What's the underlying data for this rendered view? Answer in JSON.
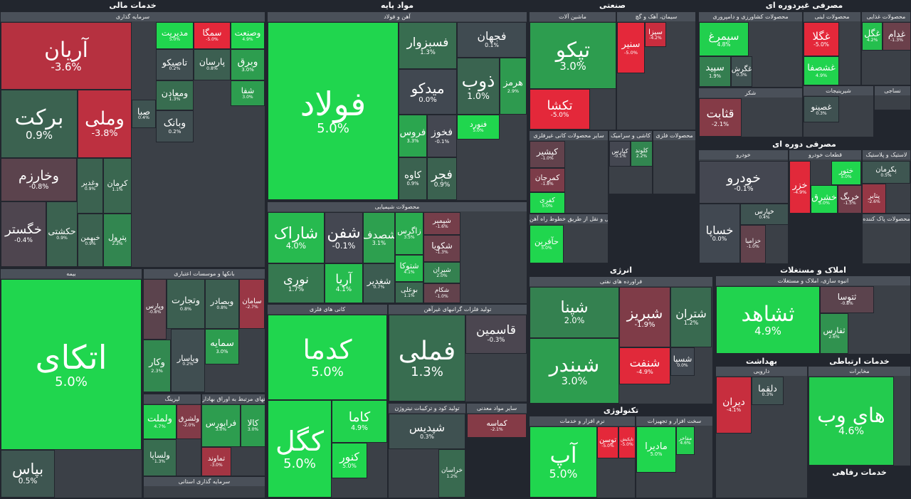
{
  "sectors": [
    {
      "title": "خدمات مالی",
      "groups": [
        {
          "title": "سرمایه گذاری",
          "tiles": [
            {
              "name": "آریان",
              "change": "-3.6%"
            },
            {
              "name": "برکت",
              "change": "0.9%"
            },
            {
              "name": "وملی",
              "change": "-3.8%"
            },
            {
              "name": "وخارزم",
              "change": "-0.8%"
            },
            {
              "name": "خگستر",
              "change": "-0.4%"
            },
            {
              "name": "حکشتی",
              "change": "0.9%"
            },
            {
              "name": "وغدیر",
              "change": "0.9%"
            },
            {
              "name": "کرمان",
              "change": "1.1%"
            },
            {
              "name": "خبهمن",
              "change": "0.9%"
            },
            {
              "name": "پترول",
              "change": "2.2%"
            },
            {
              "name": "مدیریت",
              "change": "5.0%"
            },
            {
              "name": "سمگا",
              "change": "-5.0%"
            },
            {
              "name": "وصنعت",
              "change": "4.9%"
            },
            {
              "name": "تاصیکو",
              "change": "0.2%"
            },
            {
              "name": "پارسان",
              "change": "0.8%"
            },
            {
              "name": "وبرق",
              "change": "3.0%"
            },
            {
              "name": "ومعادن",
              "change": "1.3%"
            },
            {
              "name": "وبانک",
              "change": "0.2%"
            },
            {
              "name": "صبا",
              "change": "0.4%"
            },
            {
              "name": "شفا",
              "change": "3.0%"
            }
          ]
        },
        {
          "title": "بیمه",
          "tiles": [
            {
              "name": "اتکای",
              "change": "5.0%"
            },
            {
              "name": "بپاس",
              "change": "0.5%"
            }
          ]
        },
        {
          "title": "بانکها و موسسات اعتباری",
          "tiles": [
            {
              "name": "وپارس",
              "change": "-0.8%"
            },
            {
              "name": "وتجارت",
              "change": "0.8%"
            },
            {
              "name": "وبصادر",
              "change": "0.8%"
            },
            {
              "name": "سامان",
              "change": "-2.7%"
            },
            {
              "name": "وکار",
              "change": "2.3%"
            },
            {
              "name": "وپاسار",
              "change": "0.2%"
            },
            {
              "name": "سمایه",
              "change": "3.0%"
            }
          ]
        },
        {
          "title": "لیزینگ",
          "tiles": [
            {
              "name": "ولملت",
              "change": "4.7%"
            },
            {
              "name": "ولشرق",
              "change": "-2.0%"
            },
            {
              "name": "ولساپا",
              "change": "1.3%"
            }
          ]
        },
        {
          "title": "فعالیتهای مرتبط به اوراق بهادار",
          "tiles": [
            {
              "name": "فرابورس",
              "change": "3.0%"
            },
            {
              "name": "کالا",
              "change": "3.0%"
            },
            {
              "name": "تماوند",
              "change": "-3.0%"
            }
          ]
        },
        {
          "title": "سرمایه گذاری استانی",
          "tiles": []
        }
      ]
    },
    {
      "title": "مواد پایه",
      "groups": [
        {
          "title": "آهن و فولاد",
          "tiles": [
            {
              "name": "فولاد",
              "change": "5.0%"
            },
            {
              "name": "فسبزوار",
              "change": "1.3%"
            },
            {
              "name": "فجهان",
              "change": "0.1%"
            },
            {
              "name": "میدکو",
              "change": "0.0%"
            },
            {
              "name": "ذوب",
              "change": "1.0%"
            },
            {
              "name": "هرمز",
              "change": "2.9%"
            },
            {
              "name": "فروس",
              "change": "3.3%"
            },
            {
              "name": "فخوز",
              "change": "-0.1%"
            },
            {
              "name": "فنورد",
              "change": "5.0%"
            },
            {
              "name": "کاوه",
              "change": "0.9%"
            },
            {
              "name": "فجر",
              "change": "0.9%"
            }
          ]
        },
        {
          "title": "محصولات شیمیایی",
          "tiles": [
            {
              "name": "شاراک",
              "change": "4.0%"
            },
            {
              "name": "نوری",
              "change": "1.7%"
            },
            {
              "name": "شفن",
              "change": "-0.1%"
            },
            {
              "name": "آریا",
              "change": "4.1%"
            },
            {
              "name": "شصدف",
              "change": "3.1%"
            },
            {
              "name": "شغدیر",
              "change": "0.7%"
            },
            {
              "name": "زاگرس",
              "change": "3.5%"
            },
            {
              "name": "شپمبر",
              "change": "-1.6%"
            },
            {
              "name": "شکویا",
              "change": "-1.3%"
            },
            {
              "name": "شتوکا",
              "change": "4.1%"
            },
            {
              "name": "شیران",
              "change": "2.0%"
            },
            {
              "name": "بوعلی",
              "change": "1.1%"
            },
            {
              "name": "شکام",
              "change": "-1.0%"
            }
          ]
        },
        {
          "title": "کانی های فلزی",
          "tiles": [
            {
              "name": "کدما",
              "change": "5.0%"
            },
            {
              "name": "کگل",
              "change": "5.0%"
            },
            {
              "name": "کاما",
              "change": "4.9%"
            },
            {
              "name": "کنور",
              "change": "5.0%"
            }
          ]
        },
        {
          "title": "تولید فلزات گرانبهای غیرآهن",
          "tiles": [
            {
              "name": "فملی",
              "change": "1.3%"
            },
            {
              "name": "قاسمین",
              "change": "-0.3%"
            }
          ]
        },
        {
          "title": "تولید کود و ترکیبات نیتروژن",
          "tiles": [
            {
              "name": "شپدیس",
              "change": "0.3%"
            },
            {
              "name": "خراسان",
              "change": "1.2%"
            }
          ]
        },
        {
          "title": "سایر مواد معدنی",
          "tiles": [
            {
              "name": "کماسه",
              "change": "-2.1%"
            }
          ]
        }
      ]
    },
    {
      "title": "صنعتی",
      "groups": [
        {
          "title": "ماشین آلات",
          "tiles": [
            {
              "name": "تپکو",
              "change": "3.0%"
            },
            {
              "name": "تکشا",
              "change": "-5.0%"
            }
          ]
        },
        {
          "title": "سیمان، آهک و گچ",
          "tiles": [
            {
              "name": "سنیر",
              "change": "-5.0%"
            },
            {
              "name": "سیزا",
              "change": "-4.2%"
            }
          ]
        },
        {
          "title": "سایر محصولات کانی غیرفلزی",
          "tiles": [
            {
              "name": "کپشیر",
              "change": "-1.0%"
            },
            {
              "name": "کمرجان",
              "change": "-1.8%"
            },
            {
              "name": "کفری",
              "change": "5.0%"
            }
          ]
        },
        {
          "title": "کاشی و سرامیک",
          "tiles": [
            {
              "name": "کپارس",
              "change": "-0.1%"
            },
            {
              "name": "کلوند",
              "change": "2.2%"
            }
          ]
        },
        {
          "title": "محصولات فلزی",
          "tiles": []
        },
        {
          "title": "حمل و نقل از طریق خطوط راه آهن",
          "tiles": [
            {
              "name": "حآفرین",
              "change": "5.0%"
            }
          ]
        }
      ]
    },
    {
      "title": "مصرفی غیردوره ای",
      "groups": [
        {
          "title": "محصولات کشاورزی و دامپروری",
          "tiles": [
            {
              "name": "سیمرغ",
              "change": "4.8%"
            },
            {
              "name": "سپید",
              "change": "1.9%"
            },
            {
              "name": "غگرش",
              "change": "0.3%"
            }
          ]
        },
        {
          "title": "محصولات لبنی",
          "tiles": [
            {
              "name": "غگلا",
              "change": "-5.0%"
            },
            {
              "name": "غشصفا",
              "change": "4.9%"
            }
          ]
        },
        {
          "title": "محصولات غذایی",
          "tiles": [
            {
              "name": "غگل",
              "change": "4.2%"
            },
            {
              "name": "غدام",
              "change": "-1.3%"
            }
          ]
        },
        {
          "title": "شکر",
          "tiles": [
            {
              "name": "قثابت",
              "change": "-2.1%"
            }
          ]
        },
        {
          "title": "شیرینیجات",
          "tiles": [
            {
              "name": "غصینو",
              "change": "0.3%"
            }
          ]
        },
        {
          "title": "نساجی",
          "tiles": []
        }
      ]
    },
    {
      "title": "مصرفی دوره ای",
      "groups": [
        {
          "title": "خودرو",
          "tiles": [
            {
              "name": "خودرو",
              "change": "-0.1%"
            },
            {
              "name": "خساپا",
              "change": "0.0%"
            },
            {
              "name": "خپارس",
              "change": "0.4%"
            },
            {
              "name": "خزامیا",
              "change": "-1.0%"
            }
          ]
        },
        {
          "title": "قطعات خودرو",
          "tiles": [
            {
              "name": "خزر",
              "change": "-4.9%"
            },
            {
              "name": "ختور",
              "change": "5.0%"
            },
            {
              "name": "خشرق",
              "change": "5.0%"
            },
            {
              "name": "خریگ",
              "change": "-1.5%"
            }
          ]
        },
        {
          "title": "لاستیک و پلاستیک",
          "tiles": [
            {
              "name": "پکرمان",
              "change": "0.5%"
            },
            {
              "name": "پتایر",
              "change": "-2.6%"
            }
          ]
        },
        {
          "title": "محصولات پاک کننده",
          "tiles": []
        }
      ]
    },
    {
      "title": "املاک و مستغلات",
      "groups": [
        {
          "title": "انبوه سازی، املاک و مستغلات",
          "tiles": [
            {
              "name": "ثشاهد",
              "change": "4.9%"
            },
            {
              "name": "ثتوسا",
              "change": "-0.8%"
            },
            {
              "name": "ثفارس",
              "change": "2.6%"
            }
          ]
        }
      ]
    },
    {
      "title": "انرژی",
      "groups": [
        {
          "title": "فراورده های نفتی",
          "tiles": [
            {
              "name": "شپنا",
              "change": "2.0%"
            },
            {
              "name": "شبندر",
              "change": "3.0%"
            },
            {
              "name": "شبریز",
              "change": "-1.9%"
            },
            {
              "name": "شتران",
              "change": "1.2%"
            },
            {
              "name": "شنفت",
              "change": "-4.9%"
            },
            {
              "name": "شسپا",
              "change": "0.0%"
            }
          ]
        }
      ]
    },
    {
      "title": "تکنولوژی",
      "groups": [
        {
          "title": "نرم افزار و خدمات",
          "tiles": [
            {
              "name": "آپ",
              "change": "5.0%"
            },
            {
              "name": "توسن",
              "change": "-5.0%"
            },
            {
              "name": "تاپکیش",
              "change": "-5.0%"
            }
          ]
        },
        {
          "title": "سخت افزار و تجهیزات",
          "tiles": [
            {
              "name": "مادیرا",
              "change": "5.0%"
            },
            {
              "name": "مفاخر",
              "change": "4.6%"
            }
          ]
        }
      ]
    },
    {
      "title": "بهداشت",
      "groups": [
        {
          "title": "دارویی",
          "tiles": [
            {
              "name": "دیران",
              "change": "-4.1%"
            },
            {
              "name": "دلقما",
              "change": "0.3%"
            }
          ]
        }
      ]
    },
    {
      "title": "خدمات ارتباطی",
      "groups": [
        {
          "title": "مخابرات",
          "tiles": [
            {
              "name": "های وب",
              "change": "4.6%"
            }
          ]
        }
      ]
    },
    {
      "title": "خدمات رفاهی",
      "groups": []
    }
  ]
}
